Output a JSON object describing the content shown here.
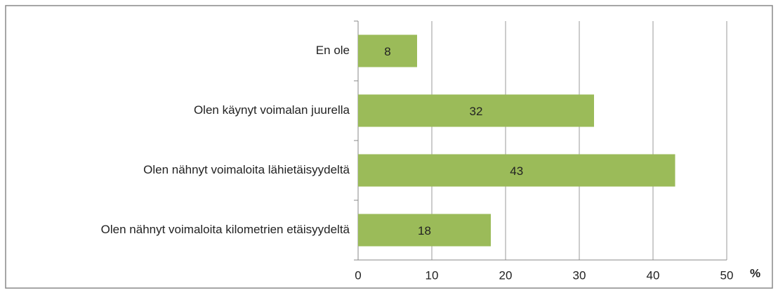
{
  "chart_data": {
    "type": "bar",
    "orientation": "horizontal",
    "categories": [
      "En ole",
      "Olen käynyt voimalan juurella",
      "Olen nähnyt voimaloita lähietäisyydeltä",
      "Olen nähnyt voimaloita kilometrien etäisyydeltä"
    ],
    "values": [
      8,
      32,
      43,
      18
    ],
    "color": "#9bbb59",
    "xlabel": "%",
    "xlim": [
      0,
      50
    ],
    "xticks": [
      0,
      10,
      20,
      30,
      40,
      50
    ],
    "grid": true
  }
}
